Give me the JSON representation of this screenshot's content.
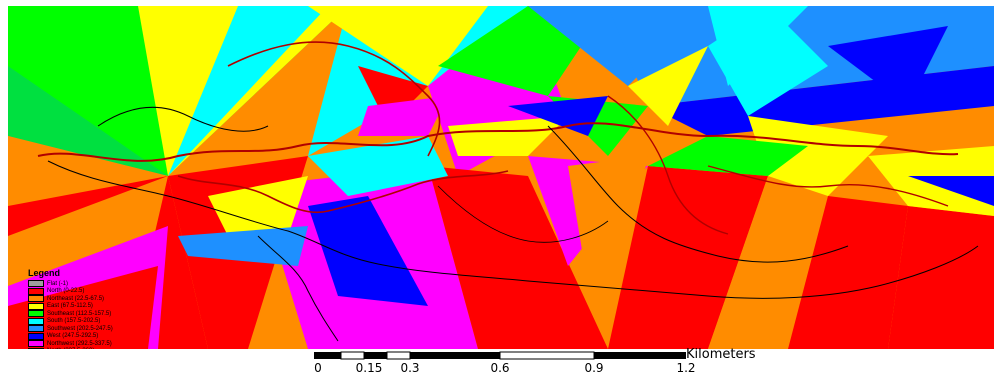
{
  "legend": {
    "title": "Legend",
    "items": [
      {
        "label": "Flat (-1)",
        "color": "#9e9e9e"
      },
      {
        "label": "North (0-22.5)",
        "color": "#ff0000"
      },
      {
        "label": "Northeast (22.5-67.5)",
        "color": "#ff8c00"
      },
      {
        "label": "East (67.5-112.5)",
        "color": "#ffff00"
      },
      {
        "label": "Southeast (112.5-157.5)",
        "color": "#00ff00"
      },
      {
        "label": "South (157.5-202.5)",
        "color": "#00ffff"
      },
      {
        "label": "Southwest (202.5-247.5)",
        "color": "#1e90ff"
      },
      {
        "label": "West (247.5-292.5)",
        "color": "#0000ff"
      },
      {
        "label": "Northwest (292.5-337.5)",
        "color": "#ff00ff"
      },
      {
        "label": "North (337.5-360)",
        "color": "#ff0000"
      }
    ]
  },
  "scale_bar": {
    "unit": "Kilometers",
    "ticks": [
      "0",
      "0.15",
      "0.3",
      "0.6",
      "0.9",
      "1.2"
    ]
  }
}
